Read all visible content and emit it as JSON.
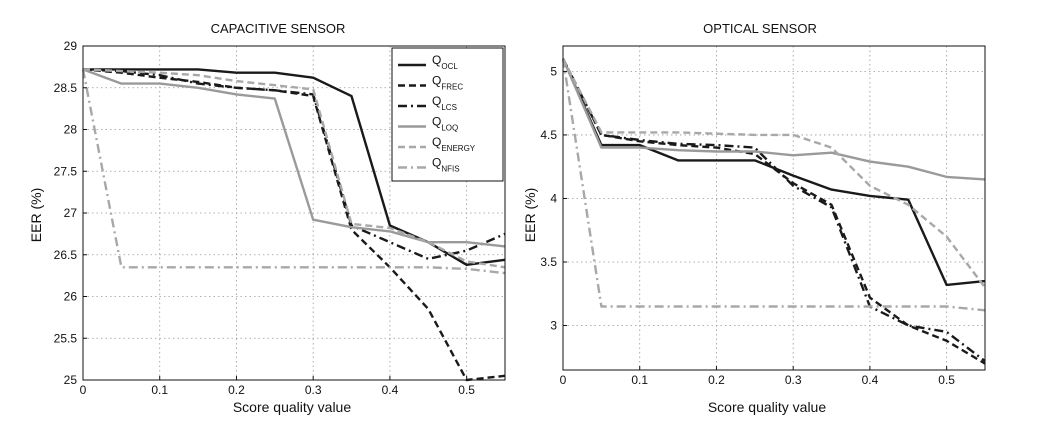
{
  "chart_data": [
    {
      "type": "line",
      "title": "CAPACITIVE SENSOR",
      "xlabel": "Score quality value",
      "ylabel": "EER (%)",
      "xlim": [
        0,
        0.55
      ],
      "ylim": [
        25,
        29
      ],
      "xticks": [
        0,
        0.1,
        0.2,
        0.3,
        0.4,
        0.5
      ],
      "xtick_labels": [
        "0",
        "0.1",
        "0.2",
        "0.3",
        "0.4",
        "0.5"
      ],
      "yticks": [
        25,
        25.5,
        26,
        26.5,
        27,
        27.5,
        28,
        28.5,
        29
      ],
      "ytick_labels": [
        "25",
        "25.5",
        "26",
        "26.5",
        "27",
        "27.5",
        "28",
        "28.5",
        "29"
      ],
      "grid": true,
      "legend_position": "top-right",
      "series": [
        {
          "key": "ocl",
          "name": "Q",
          "sub": "OCL",
          "color": "#1a1a1a",
          "dash": "solid",
          "x": [
            0,
            0.05,
            0.1,
            0.15,
            0.2,
            0.25,
            0.3,
            0.35,
            0.4,
            0.45,
            0.5,
            0.55
          ],
          "y": [
            28.72,
            28.72,
            28.72,
            28.72,
            28.68,
            28.68,
            28.62,
            28.4,
            26.85,
            26.65,
            26.38,
            26.44
          ]
        },
        {
          "key": "frec",
          "name": "Q",
          "sub": "FREC",
          "color": "#1a1a1a",
          "dash": "dash",
          "x": [
            0,
            0.05,
            0.1,
            0.15,
            0.2,
            0.25,
            0.3,
            0.35,
            0.4,
            0.45,
            0.5,
            0.55
          ],
          "y": [
            28.72,
            28.68,
            28.62,
            28.57,
            28.5,
            28.47,
            28.4,
            26.8,
            26.35,
            25.85,
            25.0,
            25.05
          ]
        },
        {
          "key": "lcs",
          "name": "Q",
          "sub": "LCS",
          "color": "#1a1a1a",
          "dash": "dashdot",
          "x": [
            0,
            0.05,
            0.1,
            0.15,
            0.2,
            0.25,
            0.3,
            0.35,
            0.4,
            0.45,
            0.5,
            0.55
          ],
          "y": [
            28.72,
            28.7,
            28.65,
            28.55,
            28.5,
            28.47,
            28.42,
            26.85,
            26.65,
            26.45,
            26.55,
            26.75
          ]
        },
        {
          "key": "loq",
          "name": "Q",
          "sub": "LOQ",
          "color": "#9a9a9a",
          "dash": "solid",
          "x": [
            0,
            0.05,
            0.1,
            0.15,
            0.2,
            0.25,
            0.3,
            0.35,
            0.4,
            0.45,
            0.5,
            0.55
          ],
          "y": [
            28.72,
            28.55,
            28.55,
            28.5,
            28.42,
            28.37,
            26.92,
            26.83,
            26.78,
            26.65,
            26.65,
            26.6
          ]
        },
        {
          "key": "energy",
          "name": "Q",
          "sub": "ENERGY",
          "color": "#a8a8a8",
          "dash": "dash",
          "x": [
            0,
            0.05,
            0.1,
            0.15,
            0.2,
            0.25,
            0.3,
            0.35,
            0.4,
            0.45,
            0.5,
            0.55
          ],
          "y": [
            28.72,
            28.7,
            28.68,
            28.65,
            28.58,
            28.53,
            28.48,
            26.87,
            26.82,
            26.65,
            26.42,
            26.35
          ]
        },
        {
          "key": "nfis",
          "name": "Q",
          "sub": "NFIS",
          "color": "#a8a8a8",
          "dash": "dashdot",
          "x": [
            0,
            0.05,
            0.1,
            0.15,
            0.2,
            0.25,
            0.3,
            0.35,
            0.4,
            0.45,
            0.5,
            0.55
          ],
          "y": [
            28.72,
            26.35,
            26.35,
            26.35,
            26.35,
            26.35,
            26.35,
            26.35,
            26.35,
            26.35,
            26.33,
            26.28
          ]
        }
      ]
    },
    {
      "type": "line",
      "title": "OPTICAL SENSOR",
      "xlabel": "Score quality value",
      "ylabel": "EER (%)",
      "xlim": [
        0,
        0.55
      ],
      "ylim": [
        2.65,
        5.2
      ],
      "xticks": [
        0,
        0.1,
        0.2,
        0.3,
        0.4,
        0.5
      ],
      "xtick_labels": [
        "0",
        "0.1",
        "0.2",
        "0.3",
        "0.4",
        "0.5"
      ],
      "yticks": [
        3,
        3.5,
        4,
        4.5,
        5
      ],
      "ytick_labels": [
        "3",
        "3.5",
        "4",
        "4.5",
        "5"
      ],
      "grid": true,
      "series": [
        {
          "key": "ocl",
          "color": "#1a1a1a",
          "dash": "solid",
          "x": [
            0,
            0.05,
            0.1,
            0.15,
            0.2,
            0.25,
            0.3,
            0.35,
            0.4,
            0.45,
            0.5,
            0.55
          ],
          "y": [
            5.1,
            4.42,
            4.42,
            4.3,
            4.3,
            4.3,
            4.18,
            4.07,
            4.02,
            3.99,
            3.32,
            3.35
          ]
        },
        {
          "key": "frec",
          "color": "#1a1a1a",
          "dash": "dash",
          "x": [
            0,
            0.05,
            0.1,
            0.15,
            0.2,
            0.25,
            0.3,
            0.35,
            0.4,
            0.45,
            0.5,
            0.55
          ],
          "y": [
            5.1,
            4.5,
            4.45,
            4.42,
            4.4,
            4.35,
            4.12,
            3.95,
            3.22,
            3.0,
            2.88,
            2.7
          ]
        },
        {
          "key": "lcs",
          "color": "#1a1a1a",
          "dash": "dashdot",
          "x": [
            0,
            0.05,
            0.1,
            0.15,
            0.2,
            0.25,
            0.3,
            0.35,
            0.4,
            0.45,
            0.5,
            0.55
          ],
          "y": [
            5.1,
            4.5,
            4.46,
            4.43,
            4.42,
            4.4,
            4.1,
            3.93,
            3.15,
            3.0,
            2.95,
            2.72
          ]
        },
        {
          "key": "loq",
          "color": "#9a9a9a",
          "dash": "solid",
          "x": [
            0,
            0.05,
            0.1,
            0.15,
            0.2,
            0.25,
            0.3,
            0.35,
            0.4,
            0.45,
            0.5,
            0.55
          ],
          "y": [
            5.1,
            4.4,
            4.4,
            4.38,
            4.37,
            4.37,
            4.34,
            4.36,
            4.29,
            4.25,
            4.17,
            4.15
          ]
        },
        {
          "key": "energy",
          "color": "#a8a8a8",
          "dash": "dash",
          "x": [
            0,
            0.05,
            0.1,
            0.15,
            0.2,
            0.25,
            0.3,
            0.35,
            0.4,
            0.45,
            0.5,
            0.55
          ],
          "y": [
            5.1,
            4.52,
            4.52,
            4.52,
            4.51,
            4.5,
            4.5,
            4.4,
            4.1,
            3.95,
            3.7,
            3.3
          ]
        },
        {
          "key": "nfis",
          "color": "#a8a8a8",
          "dash": "dashdot",
          "x": [
            0,
            0.05,
            0.1,
            0.15,
            0.2,
            0.25,
            0.3,
            0.35,
            0.4,
            0.45,
            0.5,
            0.55
          ],
          "y": [
            5.1,
            3.15,
            3.15,
            3.15,
            3.15,
            3.15,
            3.15,
            3.15,
            3.15,
            3.15,
            3.15,
            3.12
          ]
        }
      ]
    }
  ]
}
